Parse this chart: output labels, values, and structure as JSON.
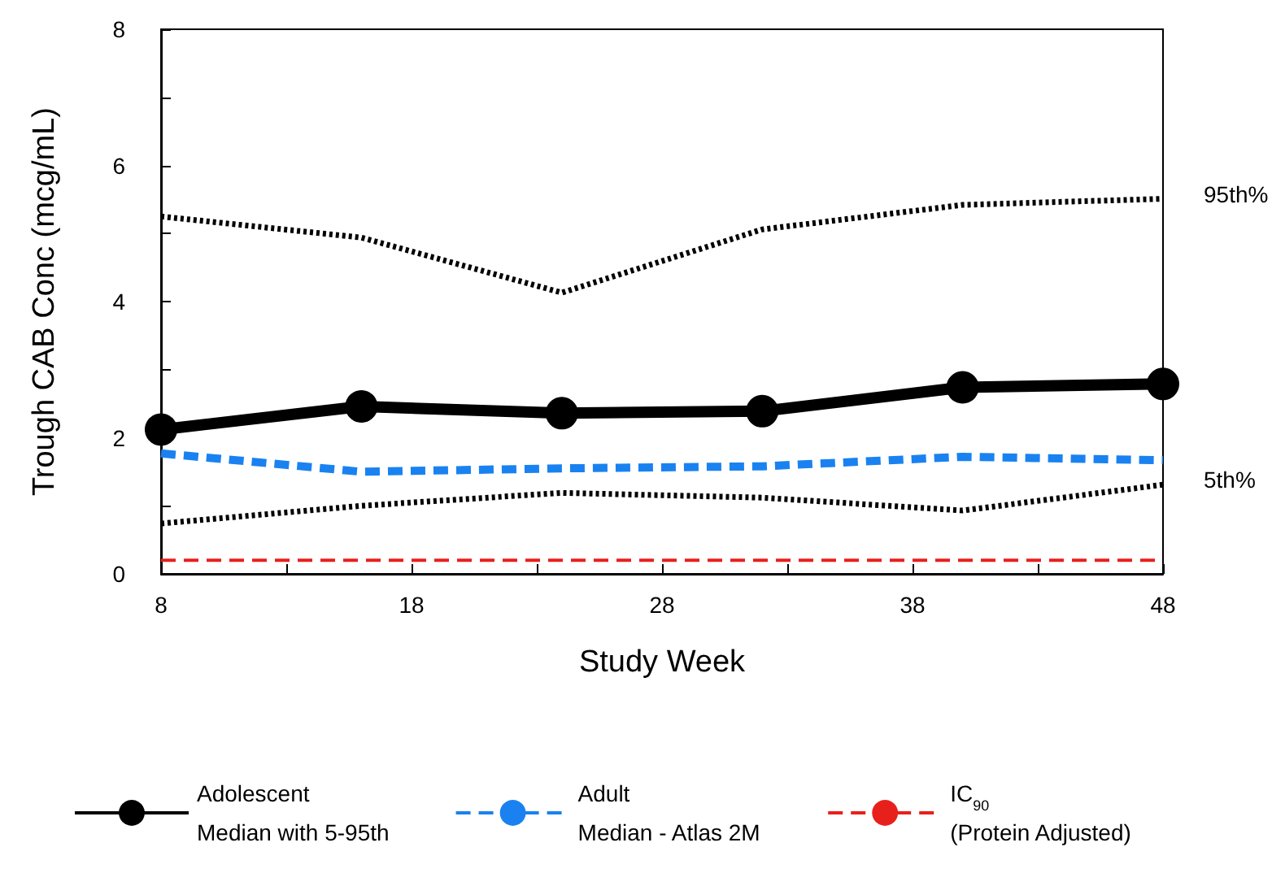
{
  "chart_data": {
    "type": "line",
    "xlabel": "Study Week",
    "ylabel": "Trough CAB Conc (mcg/mL)",
    "x": [
      8,
      16,
      24,
      32,
      40,
      48
    ],
    "series": [
      {
        "name": "Adolescent\nMedian with 5-95th",
        "color": "#000000",
        "values": [
          2.12,
          2.46,
          2.36,
          2.39,
          2.74,
          2.79
        ],
        "marker": "circle",
        "line_style": "solid"
      },
      {
        "color": "#000000",
        "values": [
          5.25,
          4.94,
          4.13,
          5.06,
          5.42,
          5.51
        ],
        "marker": "none",
        "line_style": "dotted"
      },
      {
        "color": "#000000",
        "values": [
          0.74,
          1.0,
          1.19,
          1.12,
          0.93,
          1.31
        ],
        "marker": "none",
        "line_style": "dotted"
      },
      {
        "name": "Adult\nMedian - Atlas 2M",
        "color": "#1a82f0",
        "values": [
          1.77,
          1.5,
          1.55,
          1.58,
          1.72,
          1.67
        ],
        "marker": "none",
        "line_style": "dashed"
      },
      {
        "name": "IC$_{90}$\n(Protein Adjusted)",
        "color": "#e8201c",
        "x": [
          8,
          48
        ],
        "values": [
          0.2,
          0.2
        ],
        "marker": "none",
        "line_style": "dashed"
      }
    ],
    "annotations": [
      {
        "text": "95th%",
        "x": 48,
        "y": 5.51
      },
      {
        "text": "5th%",
        "x": 48,
        "y": 1.31
      }
    ],
    "xlim": [
      8,
      48
    ],
    "xticks": [
      8,
      {
        "value": 13,
        "label": null
      },
      18,
      {
        "value": 23,
        "label": null
      },
      28,
      {
        "value": 33,
        "label": null
      },
      38,
      {
        "value": 43,
        "label": null
      },
      48
    ],
    "ylim": [
      0,
      8
    ],
    "yticks": [
      0,
      {
        "value": 1,
        "label": null
      },
      2,
      {
        "value": 3,
        "label": null
      },
      4,
      {
        "value": 5,
        "label": null
      },
      6,
      {
        "value": 7,
        "label": null
      },
      8
    ],
    "grid": false,
    "legend": "bottom"
  }
}
